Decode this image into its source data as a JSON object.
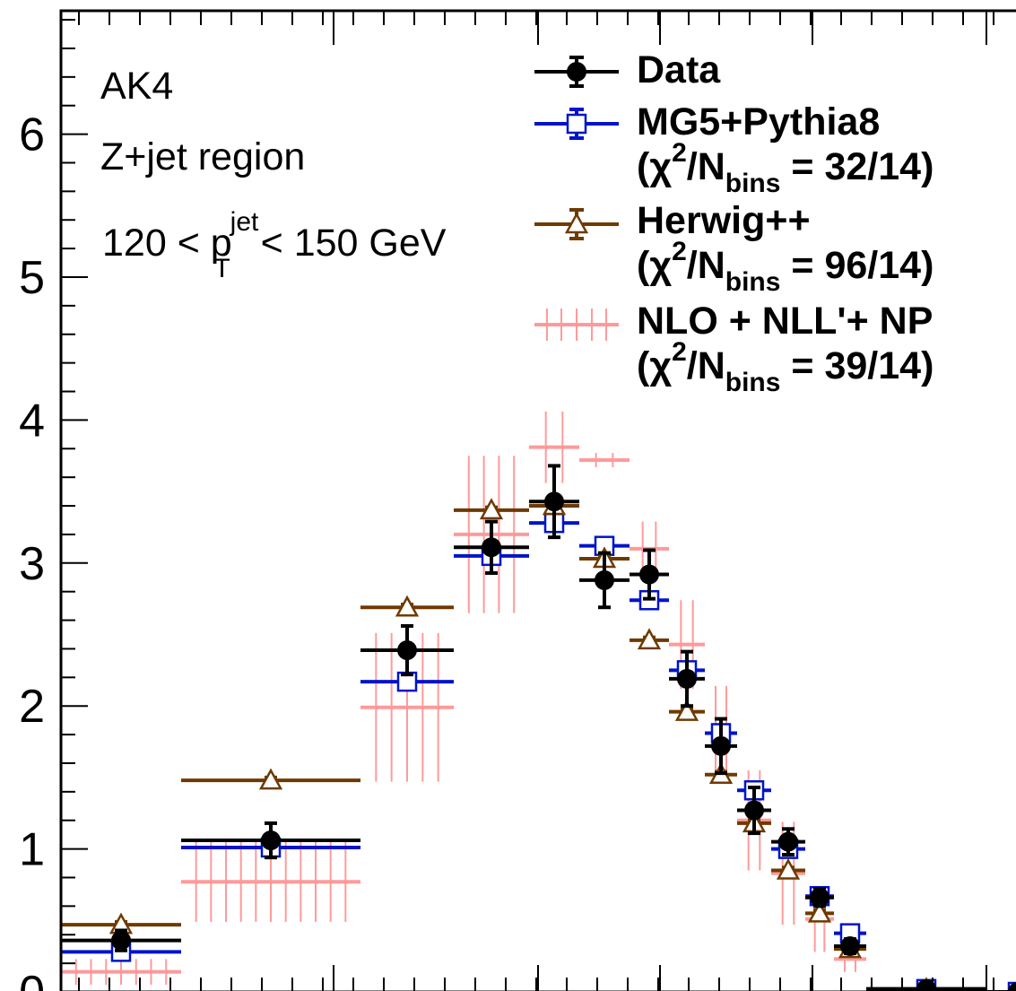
{
  "chart_data": {
    "type": "scatter",
    "ylim": [
      0,
      6.85
    ],
    "yticks": [
      "0",
      "1",
      "2",
      "3",
      "4",
      "5",
      "6"
    ],
    "annotations": {
      "line1": "AK4",
      "line2": "Z+jet region",
      "line3_a": "120 < p",
      "line3_sup": "jet",
      "line3_sub": "T",
      "line3_b": " < 150 GeV"
    },
    "legend": {
      "data": "Data",
      "mg5": "MG5+Pythia8",
      "mg5_chi": "32/14",
      "herwig": "Herwig++",
      "herwig_chi": "96/14",
      "nlo": "NLO + NLL'+ NP",
      "nlo_chi": "39/14",
      "chi_open": "(χ",
      "chi_sup": "2",
      "chi_mid": "/N",
      "chi_sub": "bins",
      "chi_eq": " = "
    },
    "bins": [
      [
        0,
        0.5
      ],
      [
        0.5,
        1.0
      ],
      [
        1.0,
        1.3
      ],
      [
        1.3,
        1.6
      ],
      [
        1.6,
        1.8
      ],
      [
        1.8,
        1.9
      ],
      [
        1.9,
        2.0
      ],
      [
        2.0,
        2.1
      ],
      [
        2.1,
        2.2
      ],
      [
        2.2,
        2.3
      ],
      [
        2.3,
        2.4
      ],
      [
        2.4,
        2.5
      ],
      [
        2.5,
        2.6
      ],
      [
        2.6,
        2.7
      ],
      [
        2.7,
        3.3
      ]
    ],
    "series": [
      {
        "name": "Data",
        "color": "#000000",
        "marker": "circle",
        "values": [
          0.36,
          1.06,
          2.39,
          3.11,
          3.43,
          2.88,
          2.92,
          2.19,
          1.72,
          1.27,
          1.05,
          0.66,
          0.32,
          0.02,
          0.0
        ],
        "errors": [
          0.07,
          0.12,
          0.17,
          0.18,
          0.25,
          0.19,
          0.17,
          0.19,
          0.19,
          0.16,
          0.09,
          0.06,
          0.05,
          0.02,
          0.0
        ]
      },
      {
        "name": "MG5+Pythia8",
        "color": "#0014c8",
        "marker": "open-square",
        "values": [
          0.28,
          1.01,
          2.17,
          3.05,
          3.28,
          3.12,
          2.74,
          2.25,
          1.81,
          1.41,
          1.0,
          0.67,
          0.41,
          0.02,
          0.0
        ],
        "errors": [
          0.03,
          0.03,
          0.03,
          0.04,
          0.04,
          0.04,
          0.04,
          0.04,
          0.04,
          0.04,
          0.04,
          0.03,
          0.03,
          0.01,
          0.0
        ]
      },
      {
        "name": "Herwig++",
        "color": "#6e3a00",
        "marker": "open-triangle",
        "values": [
          0.47,
          1.48,
          2.69,
          3.37,
          3.4,
          3.03,
          2.46,
          1.96,
          1.52,
          1.18,
          0.85,
          0.55,
          0.3,
          0.02,
          0.0
        ],
        "errors": [
          0.02,
          0.02,
          0.02,
          0.02,
          0.02,
          0.02,
          0.02,
          0.02,
          0.02,
          0.02,
          0.02,
          0.02,
          0.02,
          0.01,
          0.0
        ]
      },
      {
        "name": "NLO + NLL'+ NP",
        "color": "#ff9a9a",
        "marker": "band",
        "values": [
          0.14,
          0.77,
          1.99,
          3.2,
          3.81,
          3.72,
          3.1,
          2.43,
          1.81,
          1.2,
          0.83,
          0.51,
          0.23,
          0.02,
          0.0
        ],
        "errors": [
          0.09,
          0.28,
          0.52,
          0.55,
          0.25,
          0.05,
          0.19,
          0.31,
          0.33,
          0.35,
          0.36,
          0.23,
          0.09,
          0.01,
          0.0
        ]
      }
    ]
  }
}
